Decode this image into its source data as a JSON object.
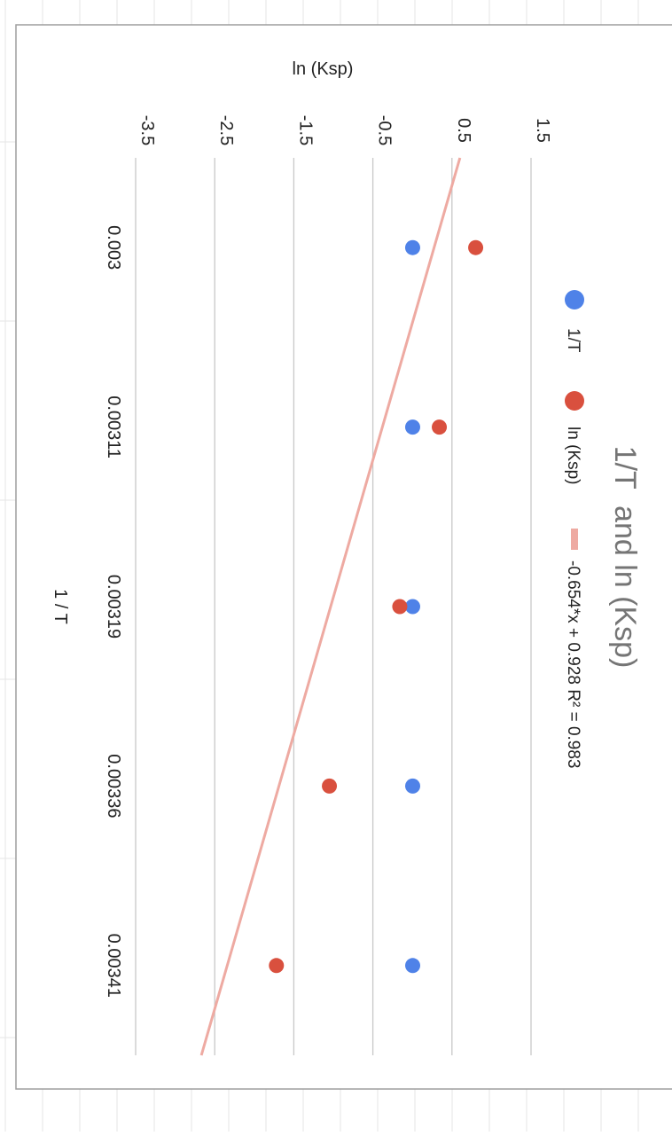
{
  "chart_data": {
    "type": "scatter",
    "title": "1/T  and ln (Ksp)",
    "xlabel": "1 / T",
    "ylabel": "ln (Ksp)",
    "categories": [
      "0.003",
      "0.00311",
      "0.00319",
      "0.00336",
      "0.00341"
    ],
    "yticks": [
      "-3.5",
      "-2.5",
      "-1.5",
      "-0.5",
      "0.5",
      "1.5"
    ],
    "ylim": [
      -3.5,
      1.5
    ],
    "grid": true,
    "orientation": "rotated-90-clockwise",
    "legend_position": "top",
    "series": [
      {
        "name": "1/T",
        "color": "#4f82e8",
        "values": [
          0.003,
          0.00311,
          0.00319,
          0.00336,
          0.00341
        ]
      },
      {
        "name": "ln (Ksp)",
        "color": "#d9503e",
        "values": [
          0.8,
          0.34,
          -0.16,
          -1.05,
          -1.72
        ]
      }
    ],
    "trendline": {
      "label": "-0.654*x + 0.928 R² = 0.983",
      "color": "#eeaaa2",
      "slope": -0.654,
      "intercept": 0.928,
      "x_index_range": [
        0.5,
        5.5
      ]
    }
  }
}
